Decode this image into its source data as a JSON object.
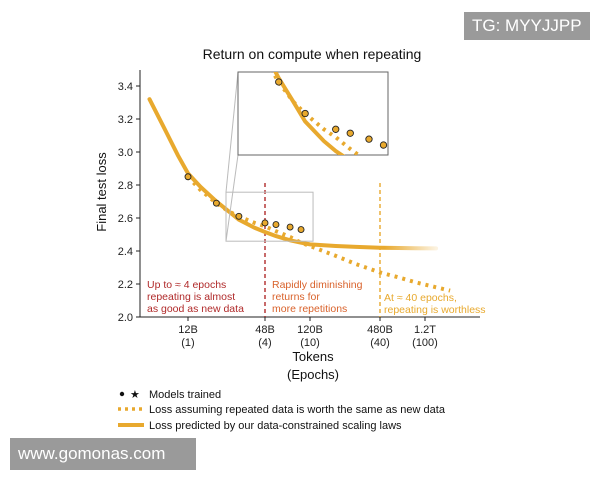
{
  "watermarks": {
    "top": "TG: MYYJJPP",
    "bottom": "www.gomonas.com"
  },
  "chart_data": {
    "type": "line",
    "title": "Return on compute when repeating",
    "xlabel": "Tokens",
    "xlabel2": "(Epochs)",
    "ylabel": "Final test loss",
    "ylim": [
      2.0,
      3.45
    ],
    "y_ticks": [
      "2.0",
      "2.2",
      "2.4",
      "2.6",
      "2.8",
      "3.0",
      "3.2",
      "3.4"
    ],
    "x_ticks": [
      {
        "label": "12B",
        "sub": "(1)"
      },
      {
        "label": "48B",
        "sub": "(4)"
      },
      {
        "label": "120B",
        "sub": "(10)"
      },
      {
        "label": "480B",
        "sub": "(40)"
      },
      {
        "label": "1.2T",
        "sub": "(100)"
      }
    ],
    "series": [
      {
        "name": "Loss predicted by our data-constrained scaling laws",
        "style": "solid",
        "color": "#E8A92E",
        "x": [
          6,
          8,
          10,
          12,
          15,
          20,
          25,
          30,
          40,
          48,
          60,
          80,
          100,
          120,
          200,
          300,
          480,
          700,
          1000,
          1500
        ],
        "y": [
          3.32,
          3.13,
          2.98,
          2.87,
          2.79,
          2.7,
          2.64,
          2.59,
          2.54,
          2.515,
          2.49,
          2.465,
          2.45,
          2.44,
          2.43,
          2.425,
          2.42,
          2.418,
          2.417,
          2.416
        ]
      },
      {
        "name": "Loss assuming repeated data is worth the same as new data",
        "style": "dotted",
        "color": "#E8A92E",
        "x": [
          12,
          15,
          20,
          25,
          30,
          40,
          48,
          60,
          80,
          100,
          120,
          200,
          300,
          480,
          700,
          1000,
          1500,
          2000
        ],
        "y": [
          2.85,
          2.77,
          2.69,
          2.64,
          2.61,
          2.57,
          2.55,
          2.52,
          2.485,
          2.45,
          2.43,
          2.37,
          2.32,
          2.27,
          2.24,
          2.21,
          2.18,
          2.16
        ]
      },
      {
        "name": "Models trained",
        "style": "markers",
        "color": "#E8A92E",
        "x": [
          12,
          20,
          30,
          48,
          60,
          80,
          100
        ],
        "y": [
          2.85,
          2.69,
          2.61,
          2.57,
          2.56,
          2.545,
          2.53
        ]
      }
    ],
    "vlines": [
      {
        "x": 48,
        "color": "#B02A2A"
      },
      {
        "x": 480,
        "color": "#E8A92E"
      }
    ],
    "annotations": [
      {
        "lines": [
          "Up to ≈ 4 epochs",
          "repeating is almost",
          "as good as new data"
        ],
        "color": "#B02A2A"
      },
      {
        "lines": [
          "Rapidly diminishing",
          "returns for",
          "more repetitions"
        ],
        "color": "#D9622B"
      },
      {
        "lines": [
          "At ≈ 40 epochs,",
          "repeating is worthless"
        ],
        "color": "#E8A92E"
      }
    ],
    "inset": {
      "x": [
        12,
        100
      ],
      "ylim": [
        2.52,
        2.72
      ]
    },
    "legend": [
      {
        "label": "Models trained",
        "kind": "markers"
      },
      {
        "label": "Loss assuming repeated data is worth the same as new data",
        "kind": "dotted"
      },
      {
        "label": "Loss predicted by our data-constrained scaling laws",
        "kind": "solid"
      }
    ]
  }
}
